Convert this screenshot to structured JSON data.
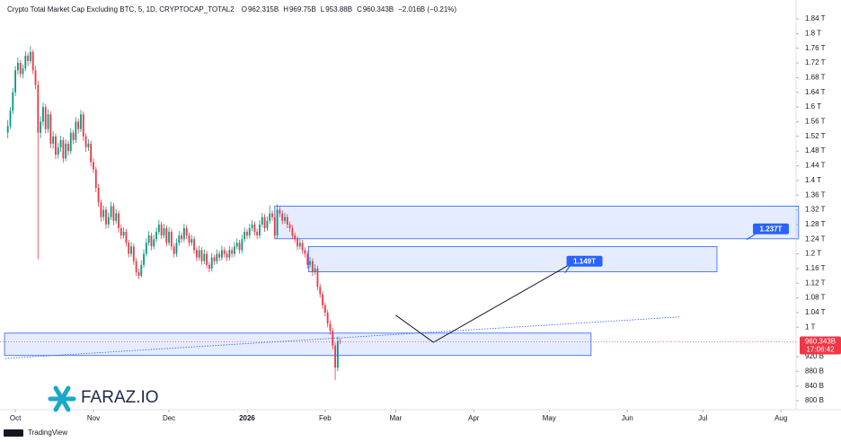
{
  "chart_data": {
    "type": "candlestick",
    "title": "Crypto Total Market Cap Excluding BTC, 5, 1D, CRYPTOCAP_TOTAL2",
    "ohlc_legend": [
      {
        "key": "O",
        "value": "962.315B"
      },
      {
        "key": "H",
        "value": "969.75B"
      },
      {
        "key": "L",
        "value": "953.88B"
      },
      {
        "key": "C",
        "value": "960.343B"
      }
    ],
    "change": "−2.016B (−0.21%)",
    "last_price_label": "960.343B",
    "countdown": "17:06:42",
    "up_color": "#089981",
    "down_color": "#f23645",
    "zone_color": "#2962ff",
    "grid": false,
    "xlim": [
      -6.1,
      310
    ],
    "ylim": [
      775.5,
      1891.5
    ],
    "xticks": [
      {
        "value": 0,
        "label": "Oct"
      },
      {
        "value": 31,
        "label": "Nov"
      },
      {
        "value": 61,
        "label": "Dec"
      },
      {
        "value": 92,
        "label": "2026"
      },
      {
        "value": 123,
        "label": "Feb"
      },
      {
        "value": 151,
        "label": "Mar"
      },
      {
        "value": 182,
        "label": "Apr"
      },
      {
        "value": 212,
        "label": "May"
      },
      {
        "value": 243,
        "label": "Jun"
      },
      {
        "value": 273,
        "label": "Jul"
      },
      {
        "value": 304,
        "label": "Aug"
      }
    ],
    "yticks": [
      {
        "value": 800,
        "label": "800 B"
      },
      {
        "value": 840,
        "label": "840 B"
      },
      {
        "value": 880,
        "label": "880 B"
      },
      {
        "value": 920,
        "label": "920 B"
      },
      {
        "value": 1000,
        "label": "1 T"
      },
      {
        "value": 1040,
        "label": "1.04 T"
      },
      {
        "value": 1080,
        "label": "1.08 T"
      },
      {
        "value": 1120,
        "label": "1.12 T"
      },
      {
        "value": 1160,
        "label": "1.16 T"
      },
      {
        "value": 1200,
        "label": "1.2 T"
      },
      {
        "value": 1240,
        "label": "1.24 T"
      },
      {
        "value": 1280,
        "label": "1.28 T"
      },
      {
        "value": 1320,
        "label": "1.32 T"
      },
      {
        "value": 1360,
        "label": "1.36 T"
      },
      {
        "value": 1400,
        "label": "1.4 T"
      },
      {
        "value": 1440,
        "label": "1.44 T"
      },
      {
        "value": 1480,
        "label": "1.48 T"
      },
      {
        "value": 1520,
        "label": "1.52 T"
      },
      {
        "value": 1560,
        "label": "1.56 T"
      },
      {
        "value": 1600,
        "label": "1.6 T"
      },
      {
        "value": 1640,
        "label": "1.64 T"
      },
      {
        "value": 1680,
        "label": "1.68 T"
      },
      {
        "value": 1720,
        "label": "1.72 T"
      },
      {
        "value": 1760,
        "label": "1.76 T"
      },
      {
        "value": 1800,
        "label": "1.8 T"
      },
      {
        "value": 1840,
        "label": "1.84 T"
      }
    ],
    "x": [
      -3,
      -2,
      -1,
      0,
      1,
      2,
      3,
      4,
      5,
      6,
      7,
      8,
      9,
      10,
      11,
      12,
      13,
      14,
      15,
      16,
      17,
      18,
      19,
      20,
      21,
      22,
      23,
      24,
      25,
      26,
      27,
      28,
      29,
      30,
      31,
      32,
      33,
      34,
      35,
      36,
      37,
      38,
      39,
      40,
      41,
      42,
      43,
      44,
      45,
      46,
      47,
      48,
      49,
      50,
      51,
      52,
      53,
      54,
      55,
      56,
      57,
      58,
      59,
      60,
      61,
      62,
      63,
      64,
      65,
      66,
      67,
      68,
      69,
      70,
      71,
      72,
      73,
      74,
      75,
      76,
      77,
      78,
      79,
      80,
      81,
      82,
      83,
      84,
      85,
      86,
      87,
      88,
      89,
      90,
      91,
      92,
      93,
      94,
      95,
      96,
      97,
      98,
      99,
      100,
      101,
      102,
      103,
      104,
      105,
      106,
      107,
      108,
      109,
      110,
      111,
      112,
      113,
      114,
      115,
      116,
      117,
      118,
      119,
      120,
      121,
      122,
      123,
      124,
      125,
      126,
      127,
      128,
      129
    ],
    "candles": [
      [
        1530,
        1565,
        1515,
        1548
      ],
      [
        1548,
        1600,
        1540,
        1590
      ],
      [
        1590,
        1652,
        1580,
        1640
      ],
      [
        1640,
        1712,
        1630,
        1700
      ],
      [
        1700,
        1735,
        1688,
        1720
      ],
      [
        1720,
        1728,
        1680,
        1690
      ],
      [
        1690,
        1716,
        1678,
        1705
      ],
      [
        1705,
        1752,
        1698,
        1740
      ],
      [
        1740,
        1748,
        1712,
        1725
      ],
      [
        1725,
        1766,
        1718,
        1750
      ],
      [
        1750,
        1756,
        1690,
        1700
      ],
      [
        1700,
        1712,
        1648,
        1660
      ],
      [
        1660,
        1672,
        1185,
        1530
      ],
      [
        1530,
        1575,
        1515,
        1560
      ],
      [
        1560,
        1612,
        1548,
        1600
      ],
      [
        1600,
        1608,
        1528,
        1540
      ],
      [
        1540,
        1594,
        1530,
        1580
      ],
      [
        1580,
        1588,
        1488,
        1500
      ],
      [
        1500,
        1534,
        1486,
        1520
      ],
      [
        1520,
        1528,
        1458,
        1470
      ],
      [
        1470,
        1502,
        1460,
        1490
      ],
      [
        1490,
        1522,
        1478,
        1510
      ],
      [
        1510,
        1518,
        1448,
        1460
      ],
      [
        1460,
        1512,
        1452,
        1500
      ],
      [
        1500,
        1508,
        1468,
        1480
      ],
      [
        1480,
        1542,
        1472,
        1530
      ],
      [
        1530,
        1538,
        1498,
        1510
      ],
      [
        1510,
        1572,
        1502,
        1560
      ],
      [
        1560,
        1568,
        1528,
        1540
      ],
      [
        1540,
        1592,
        1532,
        1580
      ],
      [
        1580,
        1588,
        1508,
        1520
      ],
      [
        1520,
        1528,
        1478,
        1490
      ],
      [
        1490,
        1512,
        1480,
        1500
      ],
      [
        1500,
        1508,
        1438,
        1450
      ],
      [
        1450,
        1460,
        1420,
        1430
      ],
      [
        1430,
        1438,
        1368,
        1380
      ],
      [
        1380,
        1390,
        1328,
        1340
      ],
      [
        1340,
        1348,
        1288,
        1300
      ],
      [
        1300,
        1332,
        1290,
        1320
      ],
      [
        1320,
        1328,
        1268,
        1280
      ],
      [
        1280,
        1312,
        1270,
        1300
      ],
      [
        1300,
        1342,
        1292,
        1330
      ],
      [
        1330,
        1338,
        1278,
        1290
      ],
      [
        1290,
        1322,
        1282,
        1310
      ],
      [
        1310,
        1318,
        1258,
        1270
      ],
      [
        1270,
        1280,
        1240,
        1250
      ],
      [
        1250,
        1272,
        1242,
        1260
      ],
      [
        1260,
        1268,
        1220,
        1230
      ],
      [
        1230,
        1238,
        1190,
        1200
      ],
      [
        1200,
        1232,
        1192,
        1220
      ],
      [
        1220,
        1228,
        1170,
        1180
      ],
      [
        1180,
        1188,
        1140,
        1150
      ],
      [
        1150,
        1160,
        1131,
        1140
      ],
      [
        1140,
        1182,
        1135,
        1170
      ],
      [
        1170,
        1212,
        1162,
        1200
      ],
      [
        1200,
        1242,
        1192,
        1230
      ],
      [
        1230,
        1262,
        1222,
        1250
      ],
      [
        1250,
        1258,
        1210,
        1220
      ],
      [
        1220,
        1252,
        1212,
        1240
      ],
      [
        1240,
        1272,
        1232,
        1260
      ],
      [
        1260,
        1292,
        1252,
        1280
      ],
      [
        1280,
        1288,
        1240,
        1250
      ],
      [
        1250,
        1282,
        1242,
        1270
      ],
      [
        1270,
        1278,
        1220,
        1230
      ],
      [
        1230,
        1272,
        1222,
        1260
      ],
      [
        1260,
        1268,
        1210,
        1220
      ],
      [
        1220,
        1228,
        1190,
        1200
      ],
      [
        1200,
        1242,
        1192,
        1230
      ],
      [
        1230,
        1262,
        1222,
        1250
      ],
      [
        1250,
        1258,
        1230,
        1240
      ],
      [
        1240,
        1282,
        1232,
        1270
      ],
      [
        1270,
        1278,
        1240,
        1250
      ],
      [
        1250,
        1258,
        1220,
        1230
      ],
      [
        1230,
        1252,
        1222,
        1240
      ],
      [
        1240,
        1248,
        1200,
        1210
      ],
      [
        1210,
        1218,
        1180,
        1190
      ],
      [
        1190,
        1222,
        1182,
        1210
      ],
      [
        1210,
        1218,
        1170,
        1180
      ],
      [
        1180,
        1212,
        1172,
        1200
      ],
      [
        1200,
        1208,
        1160,
        1170
      ],
      [
        1170,
        1178,
        1150,
        1160
      ],
      [
        1160,
        1202,
        1152,
        1190
      ],
      [
        1190,
        1198,
        1170,
        1180
      ],
      [
        1180,
        1212,
        1172,
        1200
      ],
      [
        1200,
        1208,
        1180,
        1190
      ],
      [
        1190,
        1222,
        1182,
        1210
      ],
      [
        1210,
        1218,
        1190,
        1200
      ],
      [
        1200,
        1208,
        1180,
        1190
      ],
      [
        1190,
        1222,
        1182,
        1210
      ],
      [
        1210,
        1218,
        1190,
        1200
      ],
      [
        1200,
        1232,
        1192,
        1220
      ],
      [
        1220,
        1242,
        1212,
        1230
      ],
      [
        1230,
        1238,
        1200,
        1210
      ],
      [
        1210,
        1252,
        1202,
        1240
      ],
      [
        1240,
        1272,
        1232,
        1260
      ],
      [
        1260,
        1268,
        1240,
        1250
      ],
      [
        1250,
        1282,
        1242,
        1270
      ],
      [
        1270,
        1292,
        1262,
        1280
      ],
      [
        1280,
        1288,
        1250,
        1260
      ],
      [
        1260,
        1268,
        1240,
        1250
      ],
      [
        1250,
        1292,
        1242,
        1280
      ],
      [
        1280,
        1312,
        1272,
        1300
      ],
      [
        1300,
        1308,
        1260,
        1270
      ],
      [
        1270,
        1302,
        1262,
        1290
      ],
      [
        1290,
        1332,
        1282,
        1310
      ],
      [
        1310,
        1318,
        1290,
        1300
      ],
      [
        1300,
        1308,
        1240,
        1250
      ],
      [
        1250,
        1335,
        1242,
        1320
      ],
      [
        1320,
        1328,
        1300,
        1310
      ],
      [
        1310,
        1318,
        1280,
        1290
      ],
      [
        1290,
        1312,
        1282,
        1300
      ],
      [
        1300,
        1308,
        1270,
        1280
      ],
      [
        1280,
        1288,
        1260,
        1270
      ],
      [
        1270,
        1278,
        1240,
        1250
      ],
      [
        1250,
        1258,
        1230,
        1240
      ],
      [
        1240,
        1248,
        1210,
        1220
      ],
      [
        1220,
        1242,
        1212,
        1230
      ],
      [
        1230,
        1238,
        1200,
        1210
      ],
      [
        1210,
        1218,
        1190,
        1200
      ],
      [
        1200,
        1208,
        1160,
        1170
      ],
      [
        1170,
        1192,
        1162,
        1180
      ],
      [
        1180,
        1188,
        1140,
        1150
      ],
      [
        1150,
        1172,
        1142,
        1160
      ],
      [
        1160,
        1168,
        1100,
        1110
      ],
      [
        1110,
        1118,
        1080,
        1090
      ],
      [
        1090,
        1098,
        1050,
        1060
      ],
      [
        1060,
        1068,
        1030,
        1040
      ],
      [
        1040,
        1048,
        1000,
        1010
      ],
      [
        1010,
        1018,
        980,
        990
      ],
      [
        990,
        998,
        940,
        950
      ],
      [
        950,
        958,
        856,
        890
      ],
      [
        890,
        975,
        880,
        962.315
      ],
      [
        962.315,
        969.75,
        953.88,
        960.343
      ]
    ],
    "zones": [
      {
        "x": [
          103,
          311
        ],
        "y": [
          1330,
          1241
        ]
      },
      {
        "x": [
          116.4,
          278.6
        ],
        "y": [
          1220,
          1151
        ]
      },
      {
        "x": [
          -4.3,
          228.6
        ],
        "y": [
          984,
          923
        ]
      }
    ],
    "trend_line": {
      "x": [
        -4,
        263.6
      ],
      "y": [
        915,
        1028
      ]
    },
    "path_line": {
      "x": [
        151,
        166,
        220.7
      ],
      "y": [
        1033,
        959,
        1173
      ]
    },
    "annotations": [
      {
        "text": "1.237T",
        "x": 300,
        "y": 1268,
        "tip_x": 290.3,
        "tip_y": 1239
      },
      {
        "text": "1.149T",
        "x": 226,
        "y": 1180,
        "tip_x": 218.2,
        "tip_y": 1148
      }
    ],
    "logo": "FARAZ.IO",
    "footer": "TradingView"
  }
}
